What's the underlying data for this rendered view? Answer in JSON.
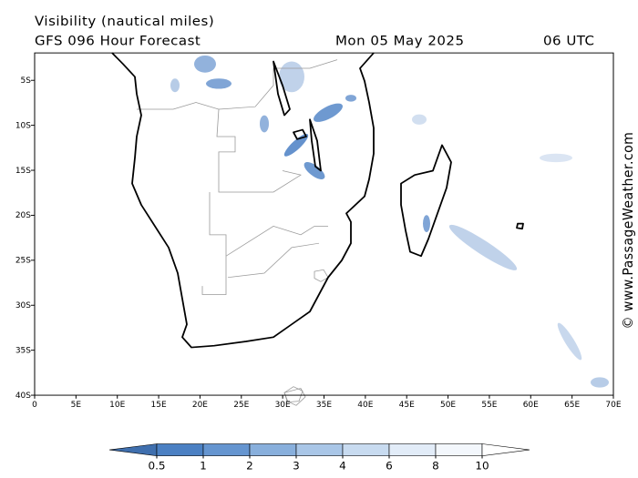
{
  "header": {
    "title": "Visibility (nautical miles)",
    "model": "GFS 096 Hour Forecast",
    "date": "Mon 05 May 2025",
    "time": "06 UTC"
  },
  "watermark": "© www.PassageWeather.com",
  "lat_ticks": [
    {
      "value": -5,
      "label": "5S"
    },
    {
      "value": -10,
      "label": "10S"
    },
    {
      "value": -15,
      "label": "15S"
    },
    {
      "value": -20,
      "label": "20S"
    },
    {
      "value": -25,
      "label": "25S"
    },
    {
      "value": -30,
      "label": "30S"
    },
    {
      "value": -35,
      "label": "35S"
    },
    {
      "value": -40,
      "label": "40S"
    }
  ],
  "lon_ticks": [
    0,
    {
      "value": 5,
      "label": "5E"
    },
    {
      "value": 10,
      "label": "10E"
    },
    {
      "value": 15,
      "label": "15E"
    },
    {
      "value": 20,
      "label": "20E"
    },
    {
      "value": 25,
      "label": "25E"
    },
    {
      "value": 30,
      "label": "30E"
    },
    {
      "value": 35,
      "label": "35E"
    },
    {
      "value": 40,
      "label": "40E"
    },
    {
      "value": 45,
      "label": "45E"
    },
    {
      "value": 50,
      "label": "50E"
    },
    {
      "value": 55,
      "label": "55E"
    },
    {
      "value": 60,
      "label": "60E"
    },
    {
      "value": 65,
      "label": "65E"
    },
    {
      "value": 70,
      "label": "70E"
    }
  ],
  "colorbar": {
    "ticks": [
      0.5,
      1,
      2,
      3,
      4,
      6,
      8,
      10
    ],
    "colors": [
      "#3f6fae",
      "#4b80c3",
      "#6595d0",
      "#88afdc",
      "#a9c6e7",
      "#c8dbf0",
      "#e2ecf8",
      "#f3f7fc",
      "#ffffff"
    ]
  }
}
